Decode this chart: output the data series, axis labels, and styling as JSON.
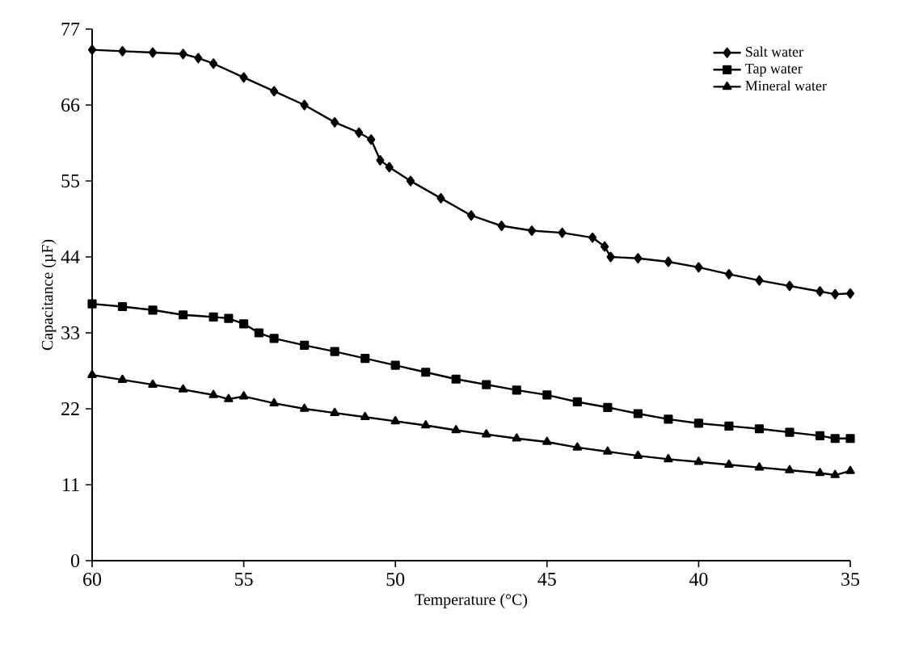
{
  "chart_data": {
    "type": "line",
    "xlabel": "Temperature (°C)",
    "ylabel": "Capacitance (µF)",
    "xlim": [
      60,
      35
    ],
    "ylim": [
      0,
      77
    ],
    "xticks": [
      60,
      55,
      50,
      45,
      40,
      35
    ],
    "yticks": [
      0,
      11,
      22,
      33,
      44,
      55,
      66,
      77
    ],
    "legend": "top right",
    "grid": false,
    "series": [
      {
        "name": "Salt water",
        "color": "#000000",
        "marker": "diamond",
        "x": [
          60,
          59,
          58,
          57,
          56.5,
          56,
          55,
          54,
          53,
          52,
          51.2,
          50.8,
          50.5,
          50.2,
          49.5,
          48.5,
          47.5,
          46.5,
          45.5,
          44.5,
          43.5,
          43.1,
          42.9,
          42,
          41,
          40,
          39,
          38,
          37,
          36,
          35.5,
          35
        ],
        "values": [
          74,
          73.8,
          73.6,
          73.4,
          72.8,
          72,
          70,
          68,
          66,
          63.5,
          62,
          61,
          58,
          57,
          55,
          52.5,
          50,
          48.5,
          47.8,
          47.5,
          46.8,
          45.5,
          44,
          43.8,
          43.3,
          42.5,
          41.5,
          40.6,
          39.8,
          39,
          38.6,
          38.7
        ]
      },
      {
        "name": "Tap water",
        "color": "#000000",
        "marker": "square",
        "x": [
          60,
          59,
          58,
          57,
          56,
          55.5,
          55,
          54.5,
          54,
          53,
          52,
          51,
          50,
          49,
          48,
          47,
          46,
          45,
          44,
          43,
          42,
          41,
          40,
          39,
          38,
          37,
          36,
          35.5,
          35
        ],
        "values": [
          37.2,
          36.8,
          36.3,
          35.6,
          35.3,
          35.1,
          34.3,
          33,
          32.2,
          31.2,
          30.3,
          29.3,
          28.3,
          27.3,
          26.3,
          25.5,
          24.7,
          24,
          23,
          22.2,
          21.3,
          20.5,
          19.9,
          19.5,
          19.1,
          18.6,
          18.1,
          17.7,
          17.7
        ]
      },
      {
        "name": "Mineral water",
        "color": "#000000",
        "marker": "triangle",
        "x": [
          60,
          59,
          58,
          57,
          56,
          55.5,
          55,
          54,
          53,
          52,
          51,
          50,
          49,
          48,
          47,
          46,
          45,
          44,
          43,
          42,
          41,
          40,
          39,
          38,
          37,
          36,
          35.5,
          35
        ],
        "values": [
          26.9,
          26.2,
          25.5,
          24.8,
          24,
          23.4,
          23.8,
          22.8,
          22,
          21.4,
          20.8,
          20.2,
          19.6,
          18.9,
          18.3,
          17.7,
          17.2,
          16.4,
          15.8,
          15.2,
          14.7,
          14.3,
          13.9,
          13.5,
          13.1,
          12.7,
          12.4,
          13
        ]
      }
    ]
  }
}
